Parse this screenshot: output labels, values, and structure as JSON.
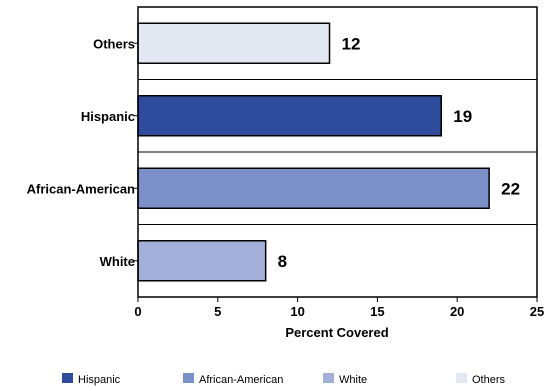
{
  "chart_data": {
    "type": "bar",
    "orientation": "horizontal",
    "categories": [
      "Others",
      "Hispanic",
      "African-American",
      "White"
    ],
    "values": [
      12,
      19,
      22,
      8
    ],
    "colors": [
      "#e4e8f3",
      "#2e4b9e",
      "#7b8fc9",
      "#a2afd9"
    ],
    "xlabel": "Percent Covered",
    "xlim": [
      0,
      25
    ],
    "xticks": [
      0,
      5,
      10,
      15,
      20,
      25
    ],
    "grid": "horizontal",
    "legend": {
      "position": "bottom",
      "entries": [
        {
          "label": "Hispanic",
          "color": "#2e4b9e"
        },
        {
          "label": "African-American",
          "color": "#7b8fc9"
        },
        {
          "label": "White",
          "color": "#a2afd9"
        },
        {
          "label": "Others",
          "color": "#e4e8f3"
        }
      ]
    }
  }
}
